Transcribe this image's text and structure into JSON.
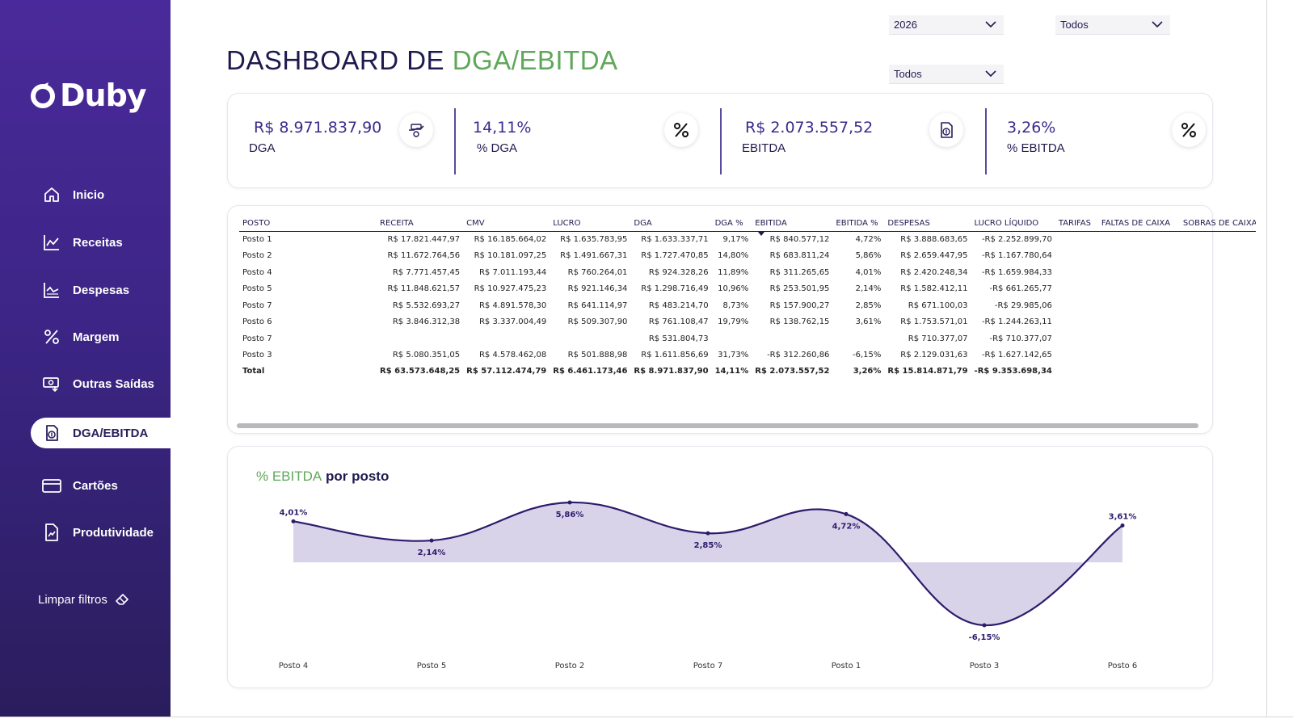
{
  "brand": {
    "name": "Duby"
  },
  "nav": {
    "items": [
      {
        "label": "Inicio",
        "icon": "home-icon"
      },
      {
        "label": "Receitas",
        "icon": "line-chart-icon"
      },
      {
        "label": "Despesas",
        "icon": "area-chart-icon"
      },
      {
        "label": "Margem",
        "icon": "percent-icon"
      },
      {
        "label": "Outras Saídas",
        "icon": "cash-out-icon"
      },
      {
        "label": "DGA/EBITDA",
        "icon": "document-money-icon",
        "active": true
      },
      {
        "label": "Cartões",
        "icon": "credit-card-icon"
      },
      {
        "label": "Produtividade",
        "icon": "report-chart-icon"
      }
    ],
    "clear_filters": "Limpar filtros"
  },
  "header": {
    "title_prefix": "DASHBOARD DE ",
    "title_accent": "DGA/EBITDA"
  },
  "filters": {
    "year": "2026",
    "filter_2": "Todos",
    "filter_3": "Todos"
  },
  "kpis": [
    {
      "value": "R$ 8.971.837,90",
      "label": "DGA",
      "icon": "money-hand-icon"
    },
    {
      "value": "14,11%",
      "label": "% DGA",
      "icon": "percent-icon"
    },
    {
      "value": "R$ 2.073.557,52",
      "label": "EBITDA",
      "icon": "document-money-icon"
    },
    {
      "value": "3,26%",
      "label": "% EBITDA",
      "icon": "percent-icon"
    }
  ],
  "table": {
    "columns": [
      "POSTO",
      "RECEITA",
      "CMV",
      "LUCRO",
      "DGA",
      "DGA %",
      "EBITIDA",
      "EBITIDA %",
      "DESPESAS",
      "LUCRO LÍQUIDO",
      "TARIFAS",
      "FALTAS DE CAIXA",
      "SOBRAS DE CAIXA"
    ],
    "rows": [
      [
        "Posto 1",
        "R$ 17.821.447,97",
        "R$ 16.185.664,02",
        "R$ 1.635.783,95",
        "R$ 1.633.337,71",
        "9,17%",
        "R$ 840.577,12",
        "4,72%",
        "R$ 3.888.683,65",
        "-R$ 2.252.899,70",
        "",
        "",
        ""
      ],
      [
        "Posto 2",
        "R$ 11.672.764,56",
        "R$ 10.181.097,25",
        "R$ 1.491.667,31",
        "R$ 1.727.470,85",
        "14,80%",
        "R$ 683.811,24",
        "5,86%",
        "R$ 2.659.447,95",
        "-R$ 1.167.780,64",
        "",
        "",
        ""
      ],
      [
        "Posto 4",
        "R$ 7.771.457,45",
        "R$ 7.011.193,44",
        "R$ 760.264,01",
        "R$ 924.328,26",
        "11,89%",
        "R$ 311.265,65",
        "4,01%",
        "R$ 2.420.248,34",
        "-R$ 1.659.984,33",
        "",
        "",
        ""
      ],
      [
        "Posto 5",
        "R$ 11.848.621,57",
        "R$ 10.927.475,23",
        "R$ 921.146,34",
        "R$ 1.298.716,49",
        "10,96%",
        "R$ 253.501,95",
        "2,14%",
        "R$ 1.582.412,11",
        "-R$ 661.265,77",
        "",
        "",
        ""
      ],
      [
        "Posto 7",
        "R$ 5.532.693,27",
        "R$ 4.891.578,30",
        "R$ 641.114,97",
        "R$ 483.214,70",
        "8,73%",
        "R$ 157.900,27",
        "2,85%",
        "R$ 671.100,03",
        "-R$ 29.985,06",
        "",
        "",
        ""
      ],
      [
        "Posto 6",
        "R$ 3.846.312,38",
        "R$ 3.337.004,49",
        "R$ 509.307,90",
        "R$ 761.108,47",
        "19,79%",
        "R$ 138.762,15",
        "3,61%",
        "R$ 1.753.571,01",
        "-R$ 1.244.263,11",
        "",
        "",
        ""
      ],
      [
        "Posto 7",
        "",
        "",
        "",
        "R$ 531.804,73",
        "",
        "",
        "",
        "R$ 710.377,07",
        "-R$ 710.377,07",
        "",
        "",
        ""
      ],
      [
        "Posto 3",
        "R$ 5.080.351,05",
        "R$ 4.578.462,08",
        "R$ 501.888,98",
        "R$ 1.611.856,69",
        "31,73%",
        "-R$ 312.260,86",
        "-6,15%",
        "R$ 2.129.031,63",
        "-R$ 1.627.142,65",
        "",
        "",
        ""
      ]
    ],
    "total": [
      "Total",
      "R$ 63.573.648,25",
      "R$ 57.112.474,79",
      "R$ 6.461.173,46",
      "R$ 8.971.837,90",
      "14,11%",
      "R$ 2.073.557,52",
      "3,26%",
      "R$ 15.814.871,79",
      "-R$ 9.353.698,34",
      "",
      "",
      ""
    ]
  },
  "chart": {
    "title_accent": "% EBITDA",
    "title_rest": " por posto"
  },
  "chart_data": {
    "type": "area",
    "title": "% EBITDA por posto",
    "categories": [
      "Posto 4",
      "Posto 5",
      "Posto 2",
      "Posto 7",
      "Posto 1",
      "Posto 3",
      "Posto 6"
    ],
    "values": [
      4.01,
      2.14,
      5.86,
      2.85,
      4.72,
      -6.15,
      3.61
    ],
    "labels": [
      "4,01%",
      "2,14%",
      "5,86%",
      "2,85%",
      "4,72%",
      "-6,15%",
      "3,61%"
    ],
    "ylim": [
      -6.15,
      5.86
    ],
    "grid": false,
    "colors": {
      "line": "#2d1b6b",
      "fill": "#d9d3ea"
    }
  },
  "colors": {
    "brand_purple": "#3c2586",
    "accent_green": "#5fa75a"
  }
}
